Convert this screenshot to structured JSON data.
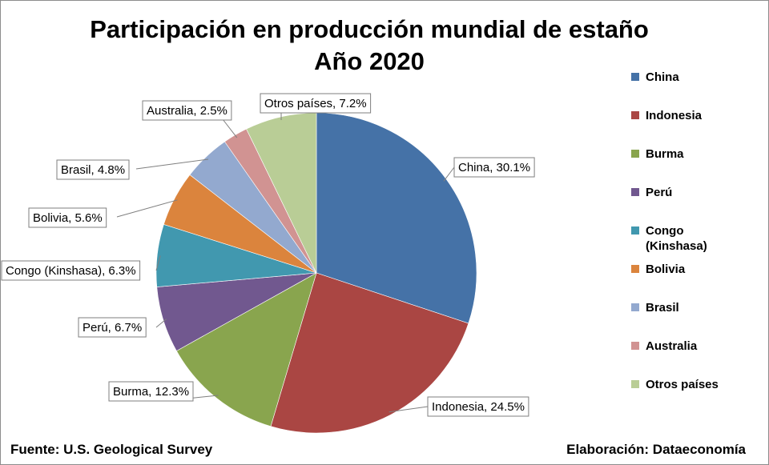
{
  "chart_data": {
    "type": "pie",
    "title": "Participación en producción mundial de estaño",
    "subtitle": "Año 2020",
    "slices": [
      {
        "label": "China",
        "value": 30.1,
        "data_label": "China, 30.1%",
        "color": "#4572A7"
      },
      {
        "label": "Indonesia",
        "value": 24.5,
        "data_label": "Indonesia, 24.5%",
        "color": "#AA4643"
      },
      {
        "label": "Burma",
        "value": 12.3,
        "data_label": "Burma, 12.3%",
        "color": "#89A54E"
      },
      {
        "label": "Perú",
        "value": 6.7,
        "data_label": "Perú, 6.7%",
        "color": "#71588F"
      },
      {
        "label": "Congo (Kinshasa)",
        "value": 6.3,
        "data_label": "Congo (Kinshasa), 6.3%",
        "color": "#4198AF"
      },
      {
        "label": "Bolivia",
        "value": 5.6,
        "data_label": "Bolivia, 5.6%",
        "color": "#DB843D"
      },
      {
        "label": "Brasil",
        "value": 4.8,
        "data_label": "Brasil, 4.8%",
        "color": "#93A9CF"
      },
      {
        "label": "Australia",
        "value": 2.5,
        "data_label": "Australia, 2.5%",
        "color": "#D19392"
      },
      {
        "label": "Otros países",
        "value": 7.2,
        "data_label": "Otros países, 7.2%",
        "color": "#B9CD96"
      }
    ],
    "legend_position": "right"
  },
  "footer": {
    "source": "Fuente: U.S. Geological Survey",
    "credit": "Elaboración: Dataeconomía"
  }
}
